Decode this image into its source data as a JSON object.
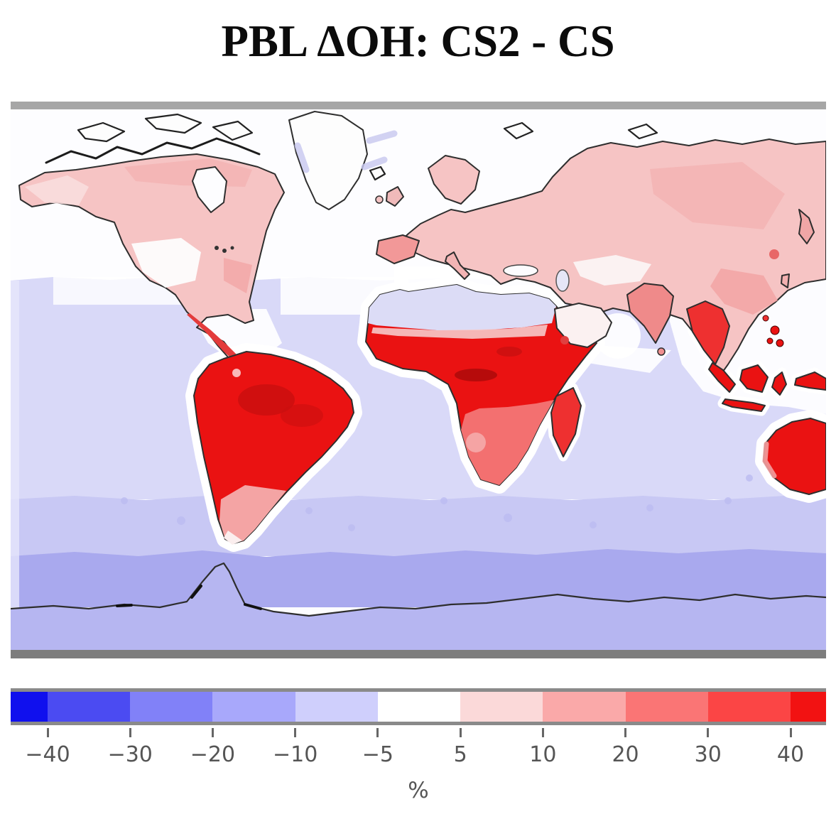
{
  "title": "PBL ΔOH: CS2 - CS",
  "colorbar": {
    "unit_label": "%",
    "ticks": [
      "−40",
      "−30",
      "−20",
      "−10",
      "−5",
      "5",
      "10",
      "20",
      "30",
      "40"
    ],
    "boundaries": [
      -40,
      -30,
      -20,
      -10,
      -5,
      5,
      10,
      20,
      30,
      40
    ],
    "segment_colors": [
      "#1010ee",
      "#4b4bf2",
      "#8181f8",
      "#a8a8fb",
      "#cfcffc",
      "#ffffff",
      "#fbd9d9",
      "#faa9a9",
      "#fa7575",
      "#fb4545",
      "#f21212"
    ],
    "extend": "both",
    "border_color": "#8a8a8a",
    "tick_color": "#666666",
    "label_color": "#555555"
  },
  "chart_data": {
    "type": "heatmap",
    "title": "PBL ΔOH: CS2 - CS",
    "units": "%",
    "legend_position": "bottom",
    "colorbar_boundaries": [
      -40,
      -30,
      -20,
      -10,
      -5,
      5,
      10,
      20,
      30,
      40
    ],
    "colorbar_colors": [
      "#1010ee",
      "#4b4bf2",
      "#8181f8",
      "#a8a8fb",
      "#cfcffc",
      "#ffffff",
      "#fbd9d9",
      "#faa9a9",
      "#fa7575",
      "#fb4545",
      "#f21212"
    ],
    "regions": [
      {
        "region": "Tropical South America (Amazon)",
        "approx_value_pct": "30 to >40"
      },
      {
        "region": "Sahel and central Africa",
        "approx_value_pct": "30 to >40"
      },
      {
        "region": "Southern Africa",
        "approx_value_pct": "10 to 30"
      },
      {
        "region": "Madagascar",
        "approx_value_pct": "20 to 40"
      },
      {
        "region": "Mexico and Central America",
        "approx_value_pct": "20 to 40"
      },
      {
        "region": "Maritime Southeast Asia / Indonesia",
        "approx_value_pct": ">40"
      },
      {
        "region": "Western Australia",
        "approx_value_pct": ">40"
      },
      {
        "region": "India and Indochina",
        "approx_value_pct": "10 to 30"
      },
      {
        "region": "North America (Canada, eastern US)",
        "approx_value_pct": "5 to 10"
      },
      {
        "region": "Europe and Russia",
        "approx_value_pct": "5 to 10"
      },
      {
        "region": "Western US interior",
        "approx_value_pct": "-5 to 5"
      },
      {
        "region": "Sahara",
        "approx_value_pct": "-10 to -5"
      },
      {
        "region": "Arabian Peninsula",
        "approx_value_pct": "-5 to 5"
      },
      {
        "region": "Greenland",
        "approx_value_pct": "-5 to 5"
      },
      {
        "region": "Northern oceans",
        "approx_value_pct": "-5 to 5"
      },
      {
        "region": "Subtropical / tropical open oceans",
        "approx_value_pct": "-10 to -5"
      },
      {
        "region": "Southern Ocean 50-65S",
        "approx_value_pct": "-30 to -20"
      },
      {
        "region": "Antarctica",
        "approx_value_pct": "-20 to -10"
      }
    ],
    "palette": {
      "ocean_north": "#fdfdff",
      "ocean_mid": "#d9d9f8",
      "ocean_south1": "#c8c8f4",
      "ocean_south2": "#a9a9ee",
      "antarctic": "#b6b6f1",
      "left_strip": "#e6e6fb",
      "land_light_pink": "#f6c4c4",
      "land_pink": "#f2a4a4",
      "land_mid_red": "#f37070",
      "land_red": "#ee3030",
      "land_deep_red": "#ea1212",
      "land_dark_red": "#c90f0f",
      "land_pale": "#fbf3f3",
      "land_white": "#fdfdfd",
      "sahara_lavender": "#dcdcf6",
      "frame_top": "#a6a6a6",
      "frame_bottom": "#7d7d7d"
    }
  }
}
